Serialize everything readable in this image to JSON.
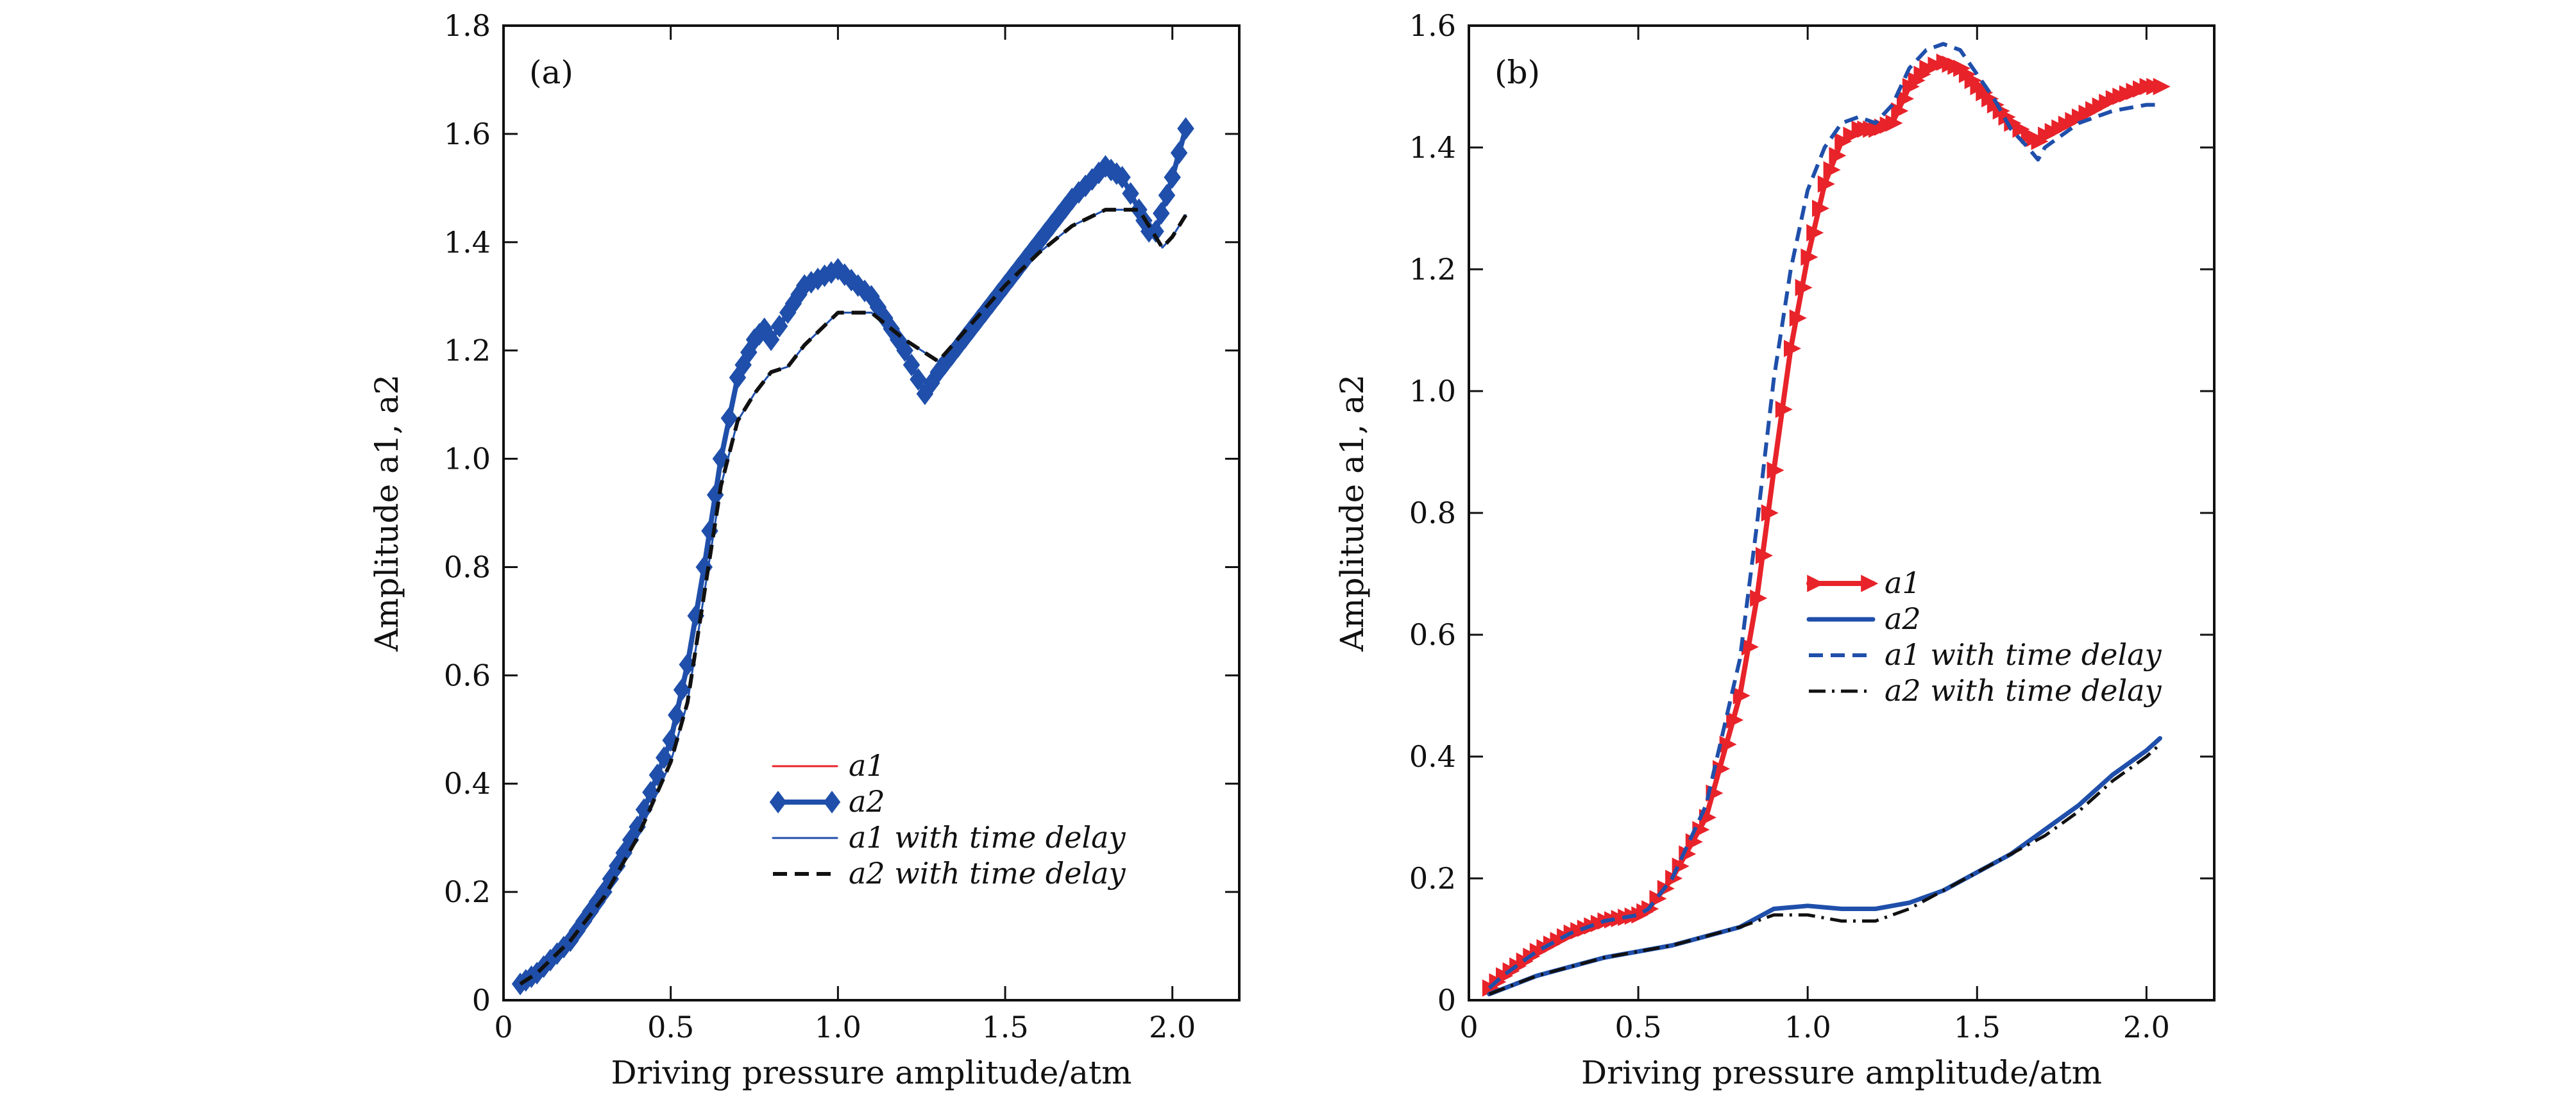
{
  "chart_data": [
    {
      "type": "line",
      "panel_label": "(a)",
      "xlabel": "Driving pressure amplitude/atm",
      "ylabel": "Amplitude a1, a2",
      "xlim": [
        0,
        2.2
      ],
      "ylim": [
        0,
        1.8
      ],
      "xticks": [
        0,
        0.5,
        1.0,
        1.5,
        2.0
      ],
      "xtick_labels": [
        "0",
        "0.5",
        "1.0",
        "1.5",
        "2.0"
      ],
      "yticks": [
        0,
        0.2,
        0.4,
        0.6,
        0.8,
        1.0,
        1.2,
        1.4,
        1.6,
        1.8
      ],
      "ytick_labels": [
        "0",
        "0.2",
        "0.4",
        "0.6",
        "0.8",
        "1.0",
        "1.2",
        "1.4",
        "1.6",
        "1.8"
      ],
      "legend_position": "lower-right",
      "grid": false,
      "series": [
        {
          "name": "a1",
          "style": "thin-solid",
          "color": "#e8232a",
          "x": [
            0.05,
            0.1,
            0.2,
            0.3,
            0.4,
            0.5,
            0.55,
            0.6,
            0.65,
            0.7,
            0.75,
            0.78,
            0.8,
            0.85,
            0.9,
            1.0,
            1.1,
            1.2,
            1.26,
            1.3,
            1.4,
            1.5,
            1.6,
            1.7,
            1.8,
            1.85,
            1.9,
            1.93,
            1.95,
            2.0,
            2.04
          ],
          "y": [
            0.03,
            0.05,
            0.11,
            0.2,
            0.32,
            0.48,
            0.62,
            0.8,
            1.0,
            1.15,
            1.22,
            1.24,
            1.22,
            1.27,
            1.32,
            1.35,
            1.3,
            1.2,
            1.12,
            1.16,
            1.24,
            1.32,
            1.4,
            1.48,
            1.54,
            1.52,
            1.46,
            1.42,
            1.42,
            1.52,
            1.61
          ]
        },
        {
          "name": "a2",
          "style": "thick-diamond-markers",
          "color": "#1f4faa",
          "x": [
            0.05,
            0.1,
            0.2,
            0.3,
            0.4,
            0.5,
            0.55,
            0.6,
            0.65,
            0.7,
            0.75,
            0.78,
            0.8,
            0.85,
            0.9,
            1.0,
            1.1,
            1.2,
            1.26,
            1.3,
            1.4,
            1.5,
            1.6,
            1.7,
            1.8,
            1.85,
            1.9,
            1.93,
            1.95,
            2.0,
            2.04
          ],
          "y": [
            0.03,
            0.05,
            0.11,
            0.2,
            0.32,
            0.48,
            0.62,
            0.8,
            1.0,
            1.15,
            1.22,
            1.24,
            1.22,
            1.27,
            1.32,
            1.35,
            1.3,
            1.2,
            1.12,
            1.16,
            1.24,
            1.32,
            1.4,
            1.48,
            1.54,
            1.52,
            1.46,
            1.42,
            1.42,
            1.52,
            1.61
          ]
        },
        {
          "name": "a1 with time delay",
          "style": "thin-solid",
          "color": "#1f4faa",
          "x": [
            0.05,
            0.1,
            0.2,
            0.3,
            0.4,
            0.5,
            0.55,
            0.6,
            0.65,
            0.7,
            0.75,
            0.8,
            0.85,
            0.9,
            1.0,
            1.1,
            1.2,
            1.3,
            1.4,
            1.5,
            1.6,
            1.7,
            1.8,
            1.9,
            1.95,
            1.97,
            2.0,
            2.04
          ],
          "y": [
            0.03,
            0.05,
            0.11,
            0.19,
            0.3,
            0.44,
            0.55,
            0.75,
            0.95,
            1.07,
            1.12,
            1.16,
            1.17,
            1.21,
            1.27,
            1.27,
            1.22,
            1.18,
            1.25,
            1.32,
            1.38,
            1.43,
            1.46,
            1.46,
            1.41,
            1.39,
            1.41,
            1.45
          ]
        },
        {
          "name": "a2 with time delay",
          "style": "dashed",
          "color": "#111111",
          "x": [
            0.05,
            0.1,
            0.2,
            0.3,
            0.4,
            0.5,
            0.55,
            0.6,
            0.65,
            0.7,
            0.75,
            0.8,
            0.85,
            0.9,
            1.0,
            1.1,
            1.2,
            1.3,
            1.4,
            1.5,
            1.6,
            1.7,
            1.8,
            1.9,
            1.95,
            1.97,
            2.0,
            2.04
          ],
          "y": [
            0.03,
            0.05,
            0.11,
            0.19,
            0.3,
            0.44,
            0.55,
            0.75,
            0.95,
            1.07,
            1.12,
            1.16,
            1.17,
            1.21,
            1.27,
            1.27,
            1.22,
            1.18,
            1.25,
            1.32,
            1.38,
            1.43,
            1.46,
            1.46,
            1.41,
            1.39,
            1.41,
            1.45
          ]
        }
      ]
    },
    {
      "type": "line",
      "panel_label": "(b)",
      "xlabel": "Driving pressure amplitude/atm",
      "ylabel": "Amplitude a1, a2",
      "xlim": [
        0,
        2.2
      ],
      "ylim": [
        0,
        1.6
      ],
      "xticks": [
        0,
        0.5,
        1.0,
        1.5,
        2.0
      ],
      "xtick_labels": [
        "0",
        "0.5",
        "1.0",
        "1.5",
        "2.0"
      ],
      "yticks": [
        0,
        0.2,
        0.4,
        0.6,
        0.8,
        1.0,
        1.2,
        1.4,
        1.6
      ],
      "ytick_labels": [
        "0",
        "0.2",
        "0.4",
        "0.6",
        "0.8",
        "1.0",
        "1.2",
        "1.4",
        "1.6"
      ],
      "legend_position": "center-right",
      "grid": false,
      "series": [
        {
          "name": "a1",
          "style": "thick-triangle-markers",
          "color": "#e8232a",
          "x": [
            0.06,
            0.1,
            0.2,
            0.3,
            0.4,
            0.5,
            0.53,
            0.6,
            0.7,
            0.8,
            0.85,
            0.9,
            0.95,
            1.0,
            1.05,
            1.1,
            1.15,
            1.2,
            1.25,
            1.3,
            1.35,
            1.4,
            1.45,
            1.5,
            1.55,
            1.6,
            1.65,
            1.68,
            1.7,
            1.8,
            1.9,
            2.0,
            2.04
          ],
          "y": [
            0.02,
            0.04,
            0.08,
            0.11,
            0.13,
            0.14,
            0.15,
            0.2,
            0.3,
            0.5,
            0.66,
            0.87,
            1.07,
            1.22,
            1.34,
            1.41,
            1.43,
            1.43,
            1.44,
            1.5,
            1.53,
            1.54,
            1.53,
            1.5,
            1.47,
            1.44,
            1.42,
            1.41,
            1.42,
            1.45,
            1.48,
            1.5,
            1.5
          ]
        },
        {
          "name": "a2",
          "style": "thick-solid",
          "color": "#1f4faa",
          "x": [
            0.06,
            0.2,
            0.4,
            0.6,
            0.8,
            0.9,
            1.0,
            1.1,
            1.2,
            1.3,
            1.4,
            1.5,
            1.6,
            1.7,
            1.8,
            1.9,
            2.0,
            2.04
          ],
          "y": [
            0.01,
            0.04,
            0.07,
            0.09,
            0.12,
            0.15,
            0.155,
            0.15,
            0.15,
            0.16,
            0.18,
            0.21,
            0.24,
            0.28,
            0.32,
            0.37,
            0.41,
            0.43
          ]
        },
        {
          "name": "a1 with time delay",
          "style": "dashed",
          "color": "#1f4faa",
          "x": [
            0.06,
            0.1,
            0.2,
            0.3,
            0.4,
            0.5,
            0.53,
            0.6,
            0.7,
            0.8,
            0.85,
            0.9,
            0.95,
            1.0,
            1.05,
            1.1,
            1.15,
            1.2,
            1.25,
            1.3,
            1.35,
            1.4,
            1.45,
            1.5,
            1.55,
            1.6,
            1.65,
            1.68,
            1.7,
            1.8,
            1.9,
            2.0,
            2.04
          ],
          "y": [
            0.02,
            0.04,
            0.08,
            0.11,
            0.13,
            0.14,
            0.15,
            0.2,
            0.32,
            0.56,
            0.78,
            1.02,
            1.2,
            1.33,
            1.4,
            1.44,
            1.45,
            1.44,
            1.47,
            1.53,
            1.56,
            1.57,
            1.56,
            1.52,
            1.48,
            1.43,
            1.4,
            1.38,
            1.4,
            1.44,
            1.46,
            1.47,
            1.47
          ]
        },
        {
          "name": "a2 with time delay",
          "style": "dash-dot",
          "color": "#111111",
          "x": [
            0.06,
            0.2,
            0.4,
            0.6,
            0.8,
            0.9,
            1.0,
            1.1,
            1.2,
            1.3,
            1.4,
            1.5,
            1.6,
            1.7,
            1.8,
            1.9,
            2.0,
            2.04
          ],
          "y": [
            0.01,
            0.04,
            0.07,
            0.09,
            0.12,
            0.14,
            0.14,
            0.13,
            0.13,
            0.15,
            0.18,
            0.21,
            0.24,
            0.27,
            0.31,
            0.36,
            0.4,
            0.42
          ]
        }
      ]
    }
  ]
}
